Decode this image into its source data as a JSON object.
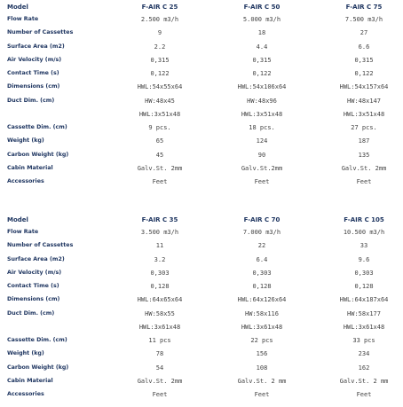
{
  "tables": [
    {
      "header": [
        "Model",
        "F-AIR C 25",
        "F-AIR C 50",
        "F-AIR C 75"
      ],
      "rows": [
        {
          "label": "Flow Rate",
          "values": [
            "2.500 m3/h",
            "5.000 m3/h",
            "7.500 m3/h"
          ]
        },
        {
          "label": "Number of Cassettes",
          "values": [
            "9",
            "18",
            "27"
          ]
        },
        {
          "label": "Surface Area (m2)",
          "values": [
            "2.2",
            "4.4",
            "6.6"
          ]
        },
        {
          "label": "Air Velocity (m/s)",
          "values": [
            "0,315",
            "0,315",
            "0,315"
          ]
        },
        {
          "label": "Contact Time (s)",
          "values": [
            "0,122",
            "0,122",
            "0,122"
          ]
        },
        {
          "label": "Dimensions (cm)",
          "values": [
            "HWL:54x55x64",
            "HWL:54x106x64",
            "HWL:54x157x64"
          ]
        },
        {
          "label": "Duct Dim. (cm)",
          "values": [
            "HW:48x45",
            "HW:48x96",
            "HW:48x147"
          ],
          "sub_values": [
            "HWL:3x51x48",
            "HWL:3x51x48",
            "HWL:3x51x48"
          ]
        },
        {
          "label": "Cassette Dim. (cm)",
          "values": [
            "9 pcs.",
            "18 pcs.",
            "27 pcs."
          ]
        },
        {
          "label": "Weight (kg)",
          "values": [
            "65",
            "124",
            "187"
          ]
        },
        {
          "label": "Carbon Weight (kg)",
          "values": [
            "45",
            "90",
            "135"
          ]
        },
        {
          "label": "Cabin Material",
          "values": [
            "Galv.St. 2mm",
            "Galv.St.2mm",
            "Galv.St. 2mm"
          ]
        },
        {
          "label": "Accessories",
          "values": [
            "Feet",
            "Feet",
            "Feet"
          ]
        }
      ]
    },
    {
      "header": [
        "Model",
        "F-AIR C 35",
        "F-AIR C 70",
        "F-AIR C 105"
      ],
      "rows": [
        {
          "label": "Flow Rate",
          "values": [
            "3.500 m3/h",
            "7.000 m3/h",
            "10.500 m3/h"
          ]
        },
        {
          "label": "Number of Cassettes",
          "values": [
            "11",
            "22",
            "33"
          ]
        },
        {
          "label": "Surface Area (m2)",
          "values": [
            "3.2",
            "6.4",
            "9.6"
          ]
        },
        {
          "label": "Air Velocity (m/s)",
          "values": [
            "0,303",
            "0,303",
            "0,303"
          ]
        },
        {
          "label": "Contact Time (s)",
          "values": [
            "0,128",
            "0,128",
            "0,128"
          ]
        },
        {
          "label": "Dimensions (cm)",
          "values": [
            "HWL:64x65x64",
            "HWL:64x126x64",
            "HWL:64x187x64"
          ]
        },
        {
          "label": "Duct Dim. (cm)",
          "values": [
            "HW:58x55",
            "HW:58x116",
            "HW:58x177"
          ],
          "sub_values": [
            "HWL:3x61x48",
            "HWL:3x61x48",
            "HWL:3x61x48"
          ]
        },
        {
          "label": "Cassette Dim. (cm)",
          "values": [
            "11 pcs",
            "22 pcs",
            "33 pcs"
          ]
        },
        {
          "label": "Weight (kg)",
          "values": [
            "78",
            "156",
            "234"
          ]
        },
        {
          "label": "Carbon Weight (kg)",
          "values": [
            "54",
            "108",
            "162"
          ]
        },
        {
          "label": "Cabin Material",
          "values": [
            "Galv.St. 2mm",
            "Galv.St. 2 mm",
            "Galv.St. 2 mm"
          ]
        },
        {
          "label": "Accessories",
          "values": [
            "Feet",
            "Feet",
            "Feet"
          ]
        }
      ]
    }
  ]
}
